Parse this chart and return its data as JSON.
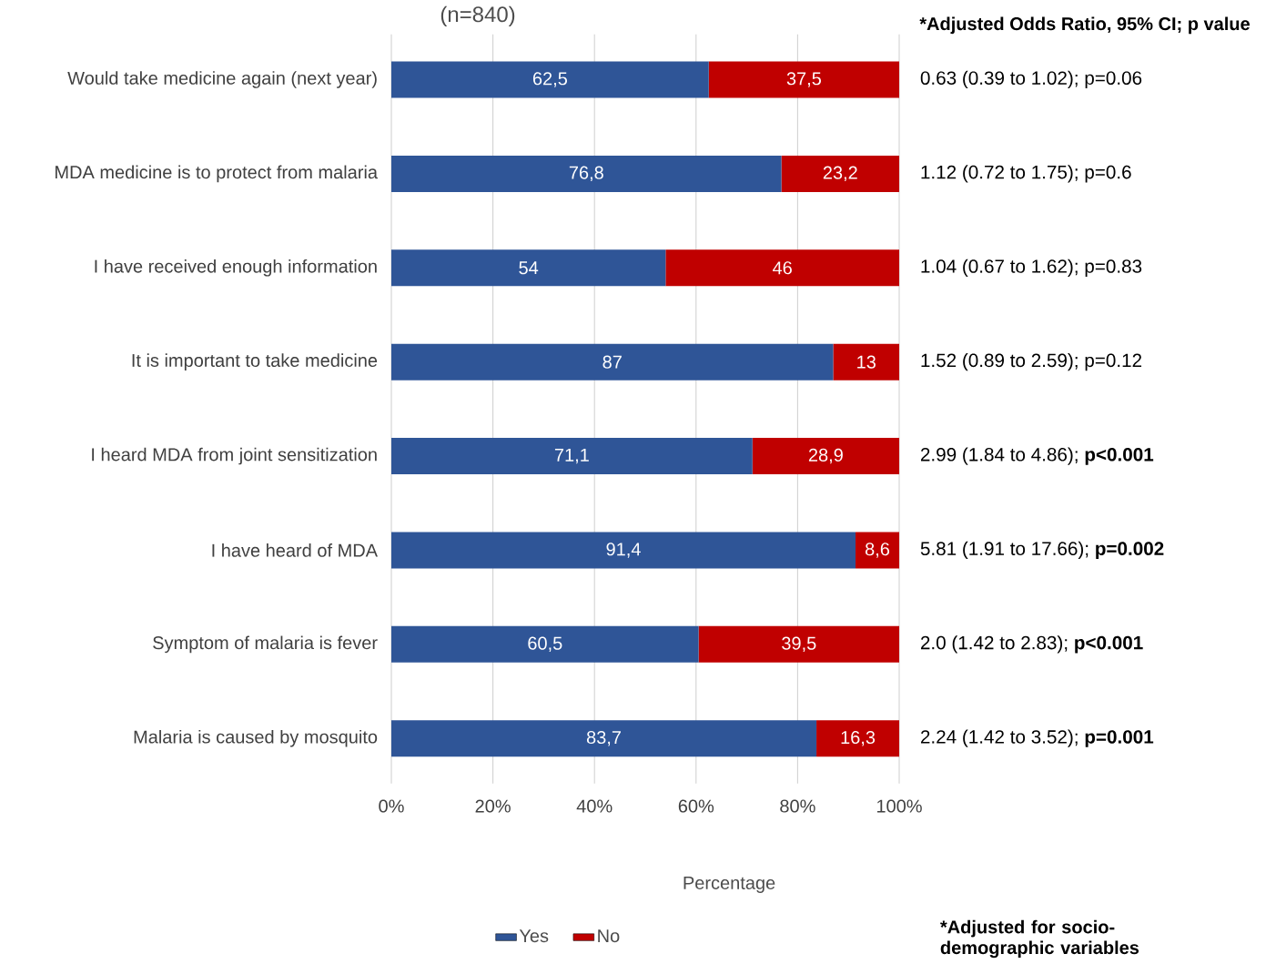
{
  "chart_data": {
    "type": "bar",
    "orientation": "horizontal",
    "stacked": true,
    "title": "(n=840)",
    "xlabel": "Percentage",
    "categories": [
      "Would take medicine again (next year)",
      "MDA medicine is to protect from malaria",
      "I have received enough information",
      "It is important to take medicine",
      "I heard MDA from joint sensitization",
      "I have heard of MDA",
      "Symptom of malaria is fever",
      "Malaria is caused by  mosquito"
    ],
    "series": [
      {
        "name": "Yes",
        "color": "#2f5597",
        "values": [
          62.5,
          76.8,
          54,
          87,
          71.1,
          91.4,
          60.5,
          83.7
        ],
        "value_labels": [
          "62,5",
          "76,8",
          "54",
          "87",
          "71,1",
          "91,4",
          "60,5",
          "83,7"
        ]
      },
      {
        "name": "No",
        "color": "#c00000",
        "values": [
          37.5,
          23.2,
          46,
          13,
          28.9,
          8.6,
          39.5,
          16.3
        ],
        "value_labels": [
          "37,5",
          "23,2",
          "46",
          "13",
          "28,9",
          "8,6",
          "39,5",
          "16,3"
        ]
      }
    ],
    "xlim": [
      0,
      100
    ],
    "xticks": [
      {
        "value": 0,
        "label": "0%"
      },
      {
        "value": 20,
        "label": "20%"
      },
      {
        "value": 40,
        "label": "40%"
      },
      {
        "value": 60,
        "label": "60%"
      },
      {
        "value": 80,
        "label": "80%"
      },
      {
        "value": 100,
        "label": "100%"
      }
    ],
    "grid": "x",
    "legend": "bottom",
    "annotations": [
      "*Adjusted  Odds Ratio,  95% CI; p value",
      "0.63 (0.39 to 1.02); p=0.06",
      "1.12 (0.72 to 1.75); p=0.6",
      "1.04 (0.67 to 1.62); p=0.83",
      "1.52 (0.89 to 2.59); p=0.12",
      "2.99 (1.84 to 4.86); **p<0.001**",
      "5.81 (1.91 to 17.66); **p=0.002**",
      "2.0 (1.42 to 2.83); **p<0.001**",
      "2.24 (1.42 to 3.52); **p=0.001**",
      "*Adjusted for socio-demographic variables"
    ]
  }
}
